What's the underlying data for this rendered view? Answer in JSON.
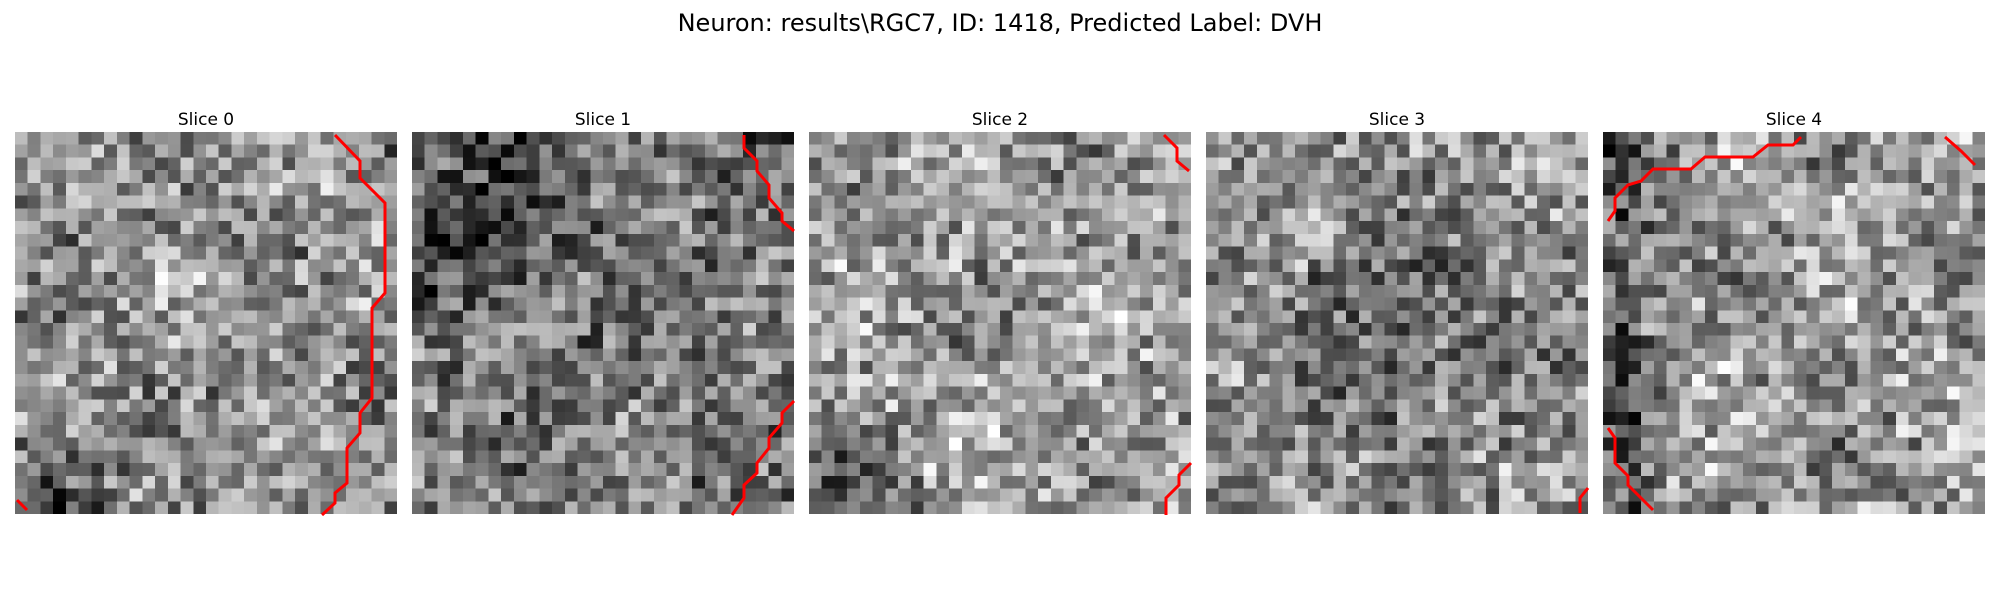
{
  "figure": {
    "title": "Neuron: results\\RGC7, ID: 1418, Predicted Label: DVH"
  },
  "colors": {
    "background": "#ffffff",
    "contour": "#ff0000",
    "colormap": "gray"
  },
  "grid_size": 30,
  "panels": [
    {
      "title": "Slice 0",
      "seed": 11,
      "bias": 0.02,
      "dark_corner": "bottom-left"
    },
    {
      "title": "Slice 1",
      "seed": 23,
      "bias": -0.08,
      "dark_corner": "top-left"
    },
    {
      "title": "Slice 2",
      "seed": 37,
      "bias": 0.06,
      "dark_corner": "bottom-left"
    },
    {
      "title": "Slice 3",
      "seed": 51,
      "bias": 0.0,
      "dark_corner": "center"
    },
    {
      "title": "Slice 4",
      "seed": 67,
      "bias": 0.05,
      "dark_corner": "left"
    }
  ]
}
